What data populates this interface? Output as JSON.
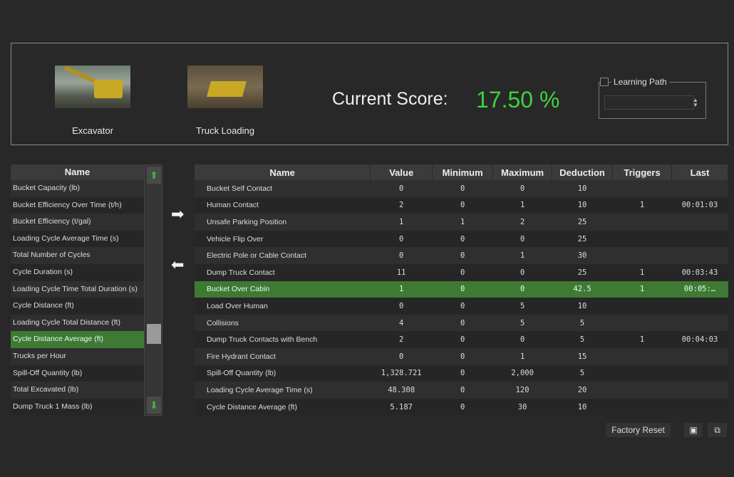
{
  "modules": [
    {
      "label": "Excavator"
    },
    {
      "label": "Truck Loading"
    }
  ],
  "score": {
    "label": "Current Score:",
    "value": "17.50 %",
    "color": "#3ed33e"
  },
  "learning_path": {
    "label": "Learning Path",
    "checked": false
  },
  "available_list": {
    "header": "Name",
    "selected_index": 9,
    "items": [
      "Bucket Capacity (lb)",
      "Bucket Efficiency Over Time (t/h)",
      "Bucket Efficiency (t/gal)",
      "Loading Cycle Average Time (s)",
      "Total Number of Cycles",
      "Cycle Duration (s)",
      "Loading Cycle Time Total Duration (s)",
      "Cycle Distance (ft)",
      "Loading Cycle Total Distance (ft)",
      "Cycle Distance Average (ft)",
      "Trucks per Hour",
      "Spill-Off Quantity (lb)",
      "Total Excavated (lb)",
      "Dump Truck 1 Mass (lb)"
    ]
  },
  "metrics": {
    "columns": [
      "Name",
      "Value",
      "Minimum",
      "Maximum",
      "Deduction",
      "Triggers",
      "Last"
    ],
    "selected_index": 6,
    "rows": [
      [
        "Bucket Self Contact",
        "0",
        "0",
        "0",
        "10",
        "",
        ""
      ],
      [
        "Human Contact",
        "2",
        "0",
        "1",
        "10",
        "1",
        "00:01:03"
      ],
      [
        "Unsafe Parking Position",
        "1",
        "1",
        "2",
        "25",
        "",
        ""
      ],
      [
        "Vehicle Flip Over",
        "0",
        "0",
        "0",
        "25",
        "",
        ""
      ],
      [
        "Electric Pole or Cable Contact",
        "0",
        "0",
        "1",
        "30",
        "",
        ""
      ],
      [
        "Dump Truck Contact",
        "11",
        "0",
        "0",
        "25",
        "1",
        "00:03:43"
      ],
      [
        "Bucket Over Cabin",
        "1",
        "0",
        "0",
        "42.5",
        "1",
        "00:05:…"
      ],
      [
        "Load Over Human",
        "0",
        "0",
        "5",
        "10",
        "",
        ""
      ],
      [
        "Collisions",
        "4",
        "0",
        "5",
        "5",
        "",
        ""
      ],
      [
        "Dump Truck Contacts with Bench",
        "2",
        "0",
        "0",
        "5",
        "1",
        "00:04:03"
      ],
      [
        "Fire Hydrant Contact",
        "0",
        "0",
        "1",
        "15",
        "",
        ""
      ],
      [
        "Spill-Off Quantity (lb)",
        "1,328.721",
        "0",
        "2,000",
        "5",
        "",
        ""
      ],
      [
        "Loading Cycle Average Time (s)",
        "48.308",
        "0",
        "120",
        "20",
        "",
        ""
      ],
      [
        "Cycle Distance Average (ft)",
        "5.187",
        "0",
        "30",
        "10",
        "",
        ""
      ]
    ]
  },
  "footer": {
    "factory_reset": "Factory Reset",
    "save_icon": "floppy-disk-icon",
    "open_icon": "folder-open-icon"
  }
}
